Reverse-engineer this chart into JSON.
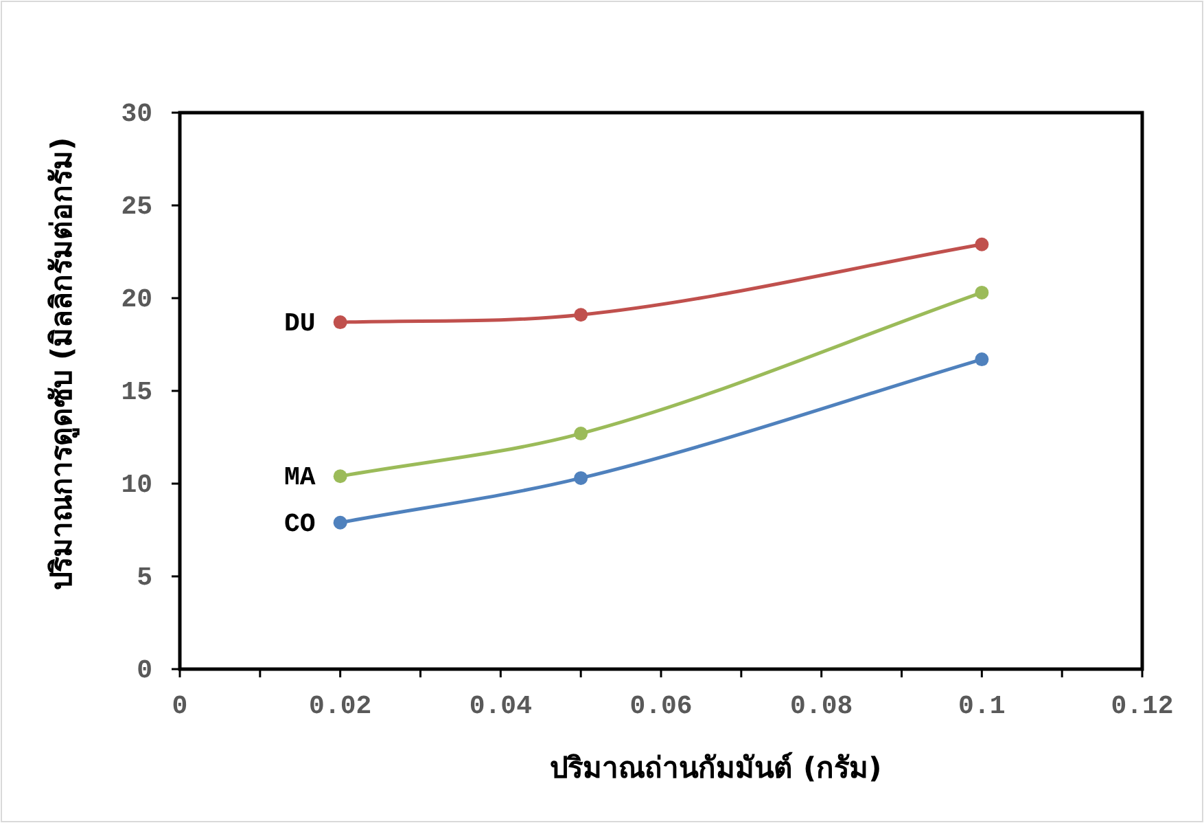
{
  "chart_data": {
    "type": "line",
    "xlabel": "ปริมาณถ่านกัมมันต์ (กรัม)",
    "ylabel": "ปริมาณการดูดซับ  (มิลลิกรัมต่อกรัม)",
    "xlim": [
      0,
      0.12
    ],
    "xticks": [
      0,
      {
        "value": 0.01,
        "label": null
      },
      0.02,
      {
        "value": 0.03,
        "label": null
      },
      0.04,
      {
        "value": 0.05,
        "label": null
      },
      0.06,
      {
        "value": 0.07,
        "label": null
      },
      0.08,
      {
        "value": 0.09,
        "label": null
      },
      0.1,
      {
        "value": 0.11,
        "label": null
      },
      0.12
    ],
    "ylim": [
      0,
      30
    ],
    "yticks": [
      0,
      5,
      10,
      15,
      20,
      25,
      30
    ],
    "x": [
      0.02,
      0.05,
      0.1
    ],
    "marker": "circle",
    "grid": false,
    "legend": false,
    "series": [
      {
        "name": "DU",
        "color": "#c0504d",
        "values": [
          18.7,
          19.1,
          22.9
        ]
      },
      {
        "name": "MA",
        "color": "#9bbb59",
        "values": [
          10.4,
          12.7,
          20.3
        ]
      },
      {
        "name": "CO",
        "color": "#4f81bd",
        "values": [
          7.9,
          10.3,
          16.7
        ]
      }
    ]
  }
}
